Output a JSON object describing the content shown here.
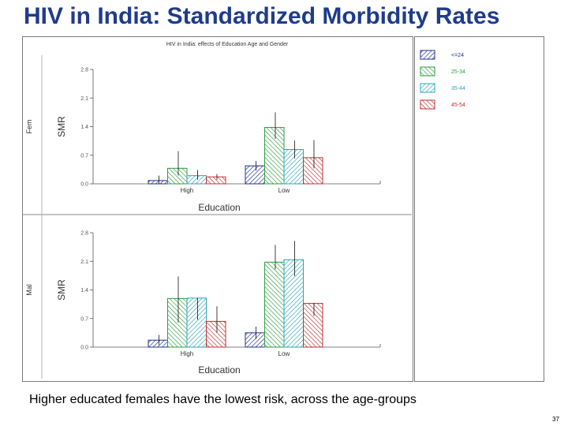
{
  "slide": {
    "title": "HIV in India: Standardized Morbidity Rates",
    "caption": "Higher educated females have the lowest risk, across the age-groups",
    "page_number": "37"
  },
  "chart_data": {
    "type": "bar",
    "title": "HIV in India: effects of Education Age and Gender",
    "xlabel": "Education",
    "ylabel": "SMR",
    "categories": [
      "High",
      "Low"
    ],
    "legend": {
      "placement": "right",
      "entries": [
        {
          "label": "<=24",
          "color": "#1f2f8f"
        },
        {
          "label": "25-34",
          "color": "#2e9e3e"
        },
        {
          "label": "35-44",
          "color": "#2aa6b8"
        },
        {
          "label": "45-54",
          "color": "#c22f2f"
        }
      ]
    },
    "panels": [
      {
        "strip_label": "Fem",
        "ylim": [
          0,
          2.8
        ],
        "ticks": [
          "0.0",
          "0.7",
          "1.4",
          "2.1",
          "2.8"
        ],
        "tick_values": [
          0,
          0.7,
          1.4,
          2.1,
          2.8
        ],
        "series": [
          {
            "name": "<=24",
            "values": [
              0.08,
              0.44
            ],
            "errors": [
              [
                0.0,
                0.2
              ],
              [
                0.32,
                0.56
              ]
            ]
          },
          {
            "name": "25-34",
            "values": [
              0.38,
              1.38
            ],
            "errors": [
              [
                0.2,
                0.8
              ],
              [
                1.1,
                1.75
              ]
            ]
          },
          {
            "name": "35-44",
            "values": [
              0.2,
              0.84
            ],
            "errors": [
              [
                0.1,
                0.34
              ],
              [
                0.62,
                1.06
              ]
            ]
          },
          {
            "name": "45-54",
            "values": [
              0.17,
              0.64
            ],
            "errors": [
              [
                0.1,
                0.24
              ],
              [
                0.38,
                1.07
              ]
            ]
          }
        ]
      },
      {
        "strip_label": "Mal",
        "ylim": [
          0,
          2.8
        ],
        "ticks": [
          "0.0",
          "0.7",
          "1.4",
          "2.1",
          "2.8"
        ],
        "tick_values": [
          0,
          0.7,
          1.4,
          2.1,
          2.8
        ],
        "series": [
          {
            "name": "<=24",
            "values": [
              0.17,
              0.35
            ],
            "errors": [
              [
                0.05,
                0.3
              ],
              [
                0.2,
                0.5
              ]
            ]
          },
          {
            "name": "25-34",
            "values": [
              1.19,
              2.08
            ],
            "errors": [
              [
                0.6,
                1.73
              ],
              [
                1.9,
                2.5
              ]
            ]
          },
          {
            "name": "35-44",
            "values": [
              1.2,
              2.14
            ],
            "errors": [
              [
                0.67,
                1.2
              ],
              [
                1.74,
                2.6
              ]
            ]
          },
          {
            "name": "45-54",
            "values": [
              0.63,
              1.07
            ],
            "errors": [
              [
                0.35,
                1.0
              ],
              [
                0.76,
                1.08
              ]
            ]
          }
        ]
      }
    ]
  }
}
